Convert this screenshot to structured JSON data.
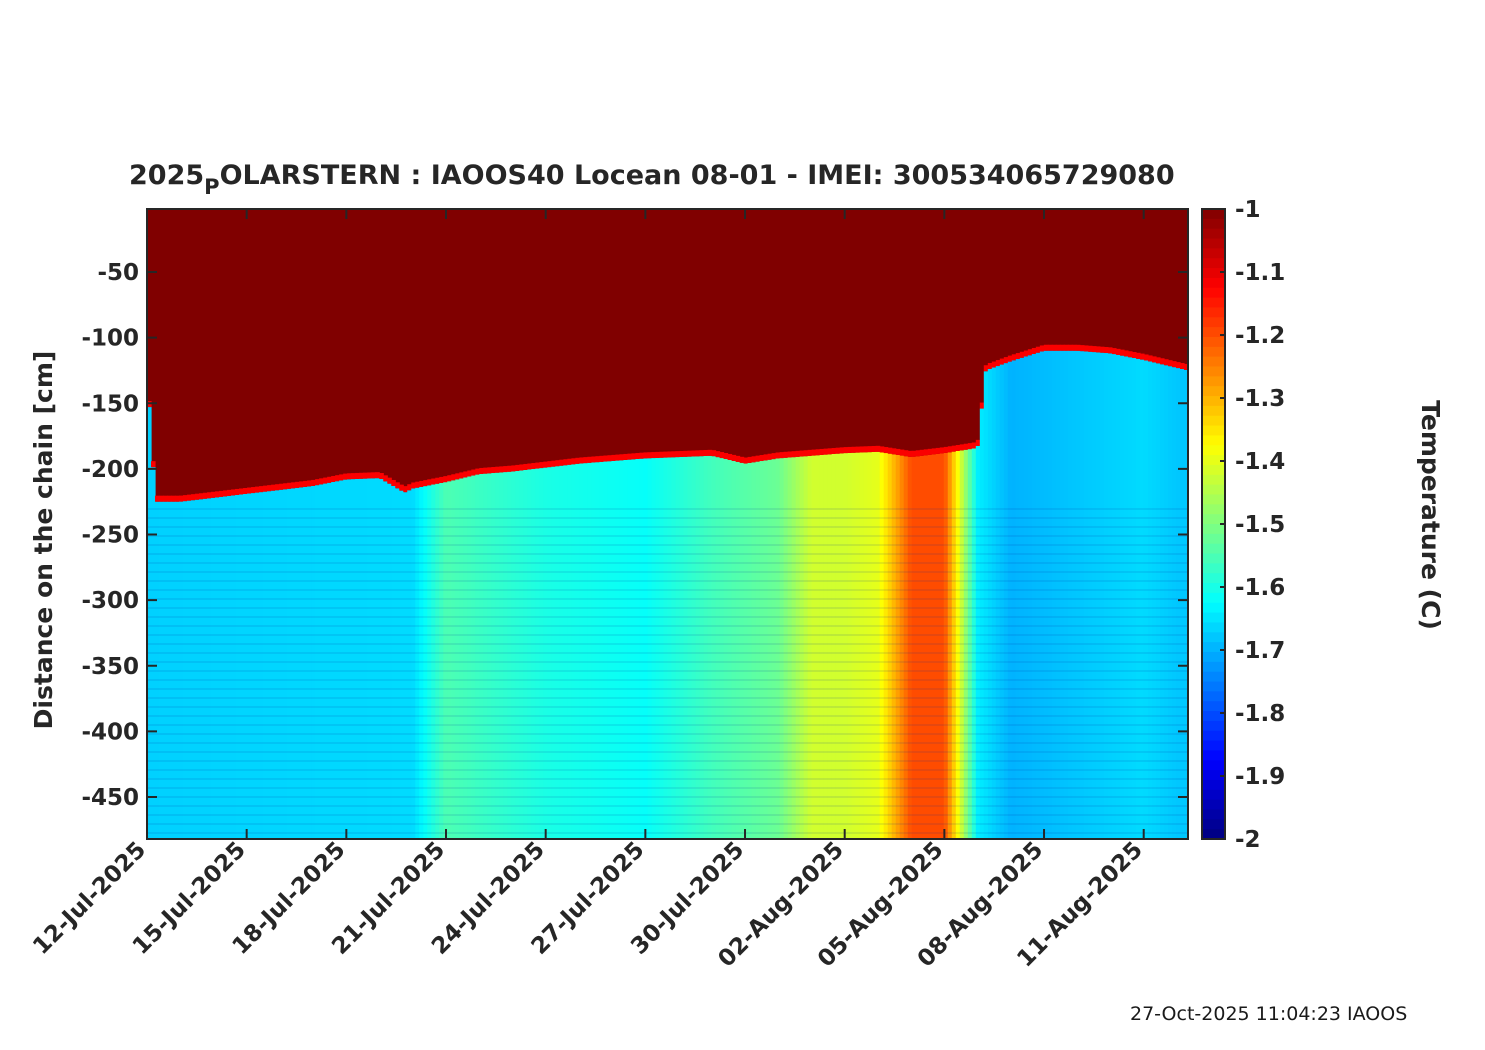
{
  "chart_data": {
    "type": "heatmap",
    "title_prefix": "2025",
    "title_subscript": "P",
    "title_rest": "OLARSTERN : IAOOS40  Locean 08-01 - IMEI: 300534065729080",
    "ylabel": "Distance on the chain [cm]",
    "colorbar_label": "Temperature (C)",
    "footer": "27-Oct-2025 11:04:23 IAOOS",
    "x_range": [
      "2025-07-12",
      "2025-08-12T08:00"
    ],
    "ylim": [
      -482,
      -2
    ],
    "clim": [
      -2,
      -1
    ],
    "colormap": "jet",
    "x_ticks": [
      "12-Jul-2025",
      "15-Jul-2025",
      "18-Jul-2025",
      "21-Jul-2025",
      "24-Jul-2025",
      "27-Jul-2025",
      "30-Jul-2025",
      "02-Aug-2025",
      "05-Aug-2025",
      "08-Aug-2025",
      "11-Aug-2025"
    ],
    "x_tick_dates": [
      "2025-07-12",
      "2025-07-15",
      "2025-07-18",
      "2025-07-21",
      "2025-07-24",
      "2025-07-27",
      "2025-07-30",
      "2025-08-02",
      "2025-08-05",
      "2025-08-08",
      "2025-08-11"
    ],
    "y_ticks": [
      -50,
      -100,
      -150,
      -200,
      -250,
      -300,
      -350,
      -400,
      -450
    ],
    "colorbar_ticks": [
      -1,
      -1.1,
      -1.2,
      -1.3,
      -1.4,
      -1.5,
      -1.6,
      -1.7,
      -1.8,
      -1.9,
      -2
    ],
    "colorbar_tick_labels": [
      "-1",
      "-1.1",
      "-1.2",
      "-1.3",
      "-1.4",
      "-1.5",
      "-1.6",
      "-1.7",
      "-1.8",
      "-1.9",
      "-2"
    ],
    "interface_depth_cm": {
      "dates": [
        "2025-07-12",
        "2025-07-12T06:00",
        "2025-07-13",
        "2025-07-14",
        "2025-07-15",
        "2025-07-16",
        "2025-07-17",
        "2025-07-18",
        "2025-07-19",
        "2025-07-19T18:00",
        "2025-07-20",
        "2025-07-21",
        "2025-07-22",
        "2025-07-23",
        "2025-07-24",
        "2025-07-25",
        "2025-07-26",
        "2025-07-27",
        "2025-07-28",
        "2025-07-29",
        "2025-07-30",
        "2025-07-31",
        "2025-08-01",
        "2025-08-02",
        "2025-08-03",
        "2025-08-04",
        "2025-08-05",
        "2025-08-06",
        "2025-08-06T06:00",
        "2025-08-07",
        "2025-08-08",
        "2025-08-09",
        "2025-08-10",
        "2025-08-11",
        "2025-08-12T08:00"
      ],
      "values": [
        -130,
        -225,
        -225,
        -222,
        -219,
        -216,
        -213,
        -208,
        -207,
        -218,
        -215,
        -210,
        -204,
        -202,
        -199,
        -196,
        -194,
        -192,
        -191,
        -190,
        -196,
        -192,
        -190,
        -188,
        -187,
        -191,
        -188,
        -184,
        -125,
        -118,
        -110,
        -110,
        -112,
        -117,
        -125
      ]
    },
    "water_temperature_c": {
      "dates": [
        "2025-07-12",
        "2025-07-20",
        "2025-07-21",
        "2025-07-24",
        "2025-07-27",
        "2025-07-29",
        "2025-07-31",
        "2025-08-01",
        "2025-08-02",
        "2025-08-03",
        "2025-08-04",
        "2025-08-05",
        "2025-08-06",
        "2025-08-07",
        "2025-08-09",
        "2025-08-11",
        "2025-08-12"
      ],
      "values": [
        -1.67,
        -1.66,
        -1.55,
        -1.6,
        -1.62,
        -1.56,
        -1.52,
        -1.42,
        -1.42,
        -1.4,
        -1.2,
        -1.2,
        -1.64,
        -1.7,
        -1.68,
        -1.66,
        -1.68
      ]
    },
    "ice_temperature_c": "above -1 (saturated)"
  }
}
